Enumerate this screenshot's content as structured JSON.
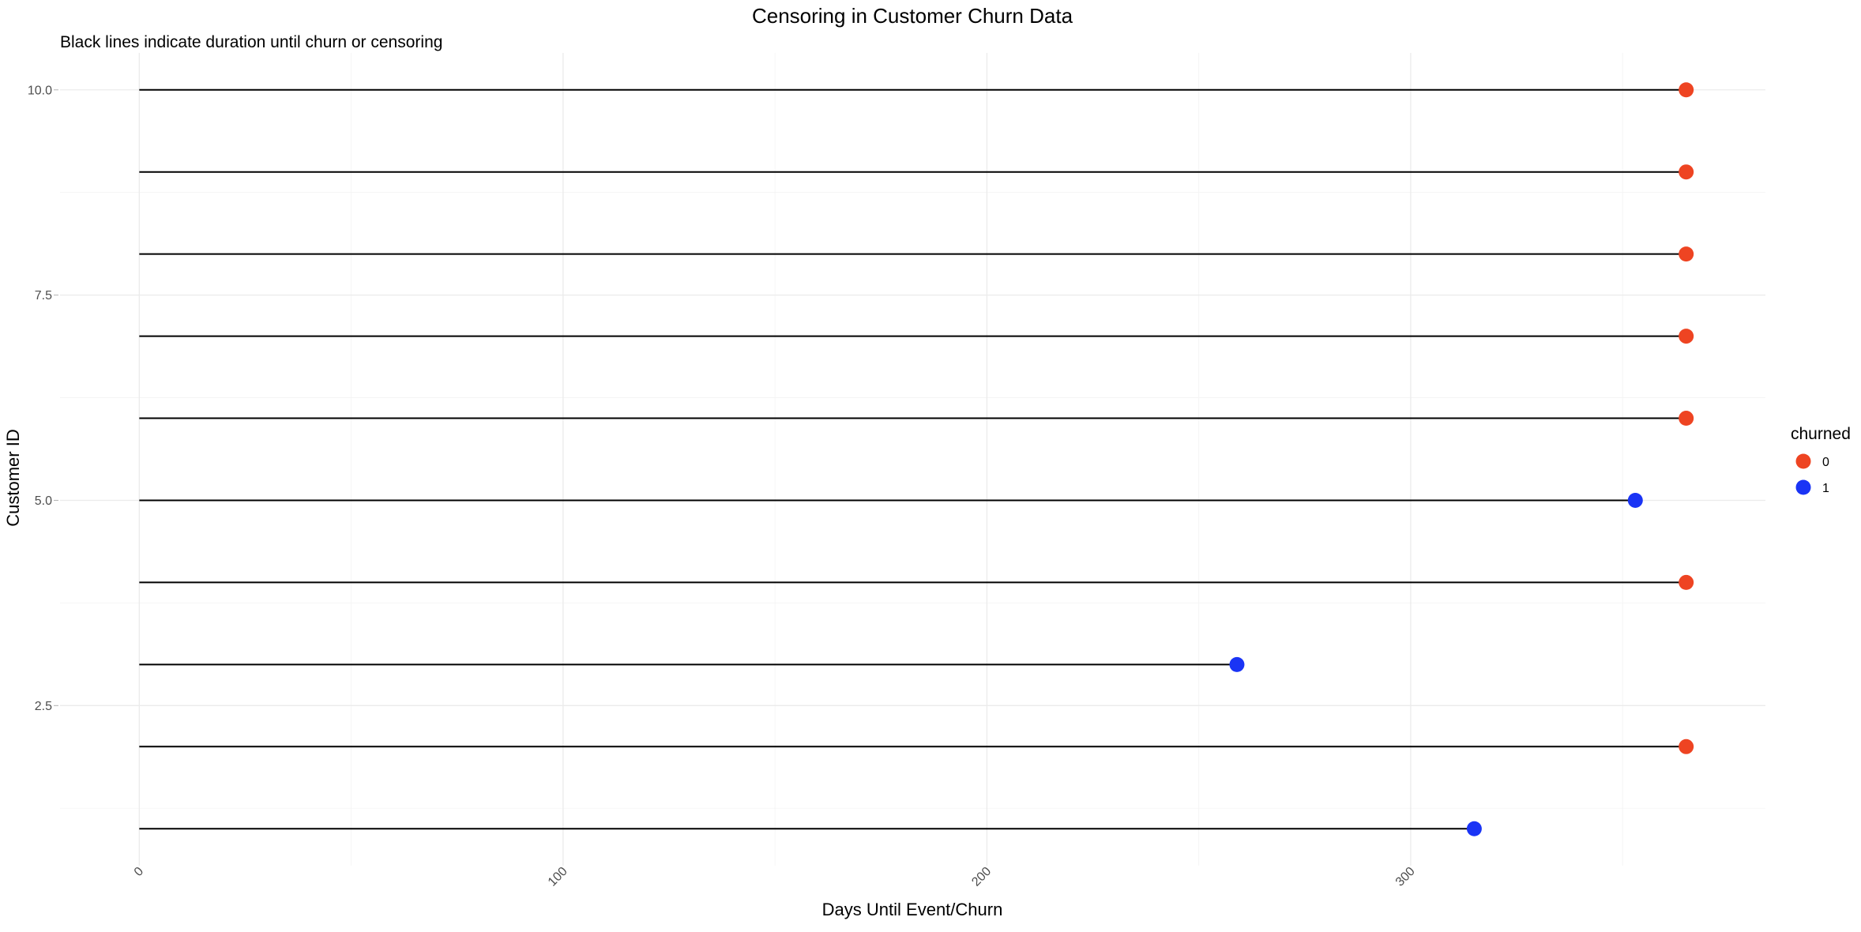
{
  "chart_data": {
    "type": "scatter",
    "title": "Censoring in Customer Churn Data",
    "subtitle": "Black lines indicate duration until churn or censoring",
    "xlabel": "Days Until Event/Churn",
    "ylabel": "Customer ID",
    "xlim": [
      -18.7,
      383.7
    ],
    "ylim": [
      0.55,
      10.45
    ],
    "x_ticks": [
      0,
      100,
      200,
      300
    ],
    "y_ticks": [
      2.5,
      5.0,
      7.5,
      10.0
    ],
    "y_tick_labels": [
      "2.5",
      "5.0",
      "7.5",
      "10.0"
    ],
    "grid": true,
    "legend": {
      "title": "churned",
      "position": "right",
      "entries": [
        {
          "label": "0",
          "color": "#ee4422"
        },
        {
          "label": "1",
          "color": "#1a34f5"
        }
      ]
    },
    "series": [
      {
        "name": "0",
        "color": "#ee4422",
        "points": [
          {
            "customer_id": 10,
            "days": 365
          },
          {
            "customer_id": 9,
            "days": 365
          },
          {
            "customer_id": 8,
            "days": 365
          },
          {
            "customer_id": 7,
            "days": 365
          },
          {
            "customer_id": 6,
            "days": 365
          },
          {
            "customer_id": 4,
            "days": 365
          },
          {
            "customer_id": 2,
            "days": 365
          }
        ]
      },
      {
        "name": "1",
        "color": "#1a34f5",
        "points": [
          {
            "customer_id": 5,
            "days": 353
          },
          {
            "customer_id": 3,
            "days": 259
          },
          {
            "customer_id": 1,
            "days": 315
          }
        ]
      }
    ]
  }
}
